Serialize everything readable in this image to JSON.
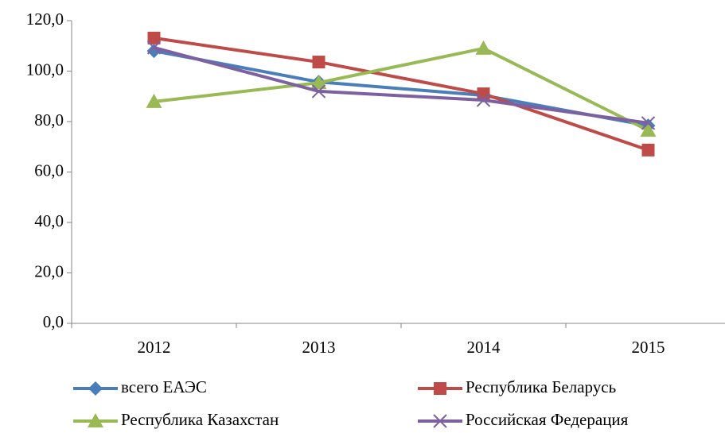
{
  "chart_data": {
    "type": "line",
    "categories": [
      "2012",
      "2013",
      "2014",
      "2015"
    ],
    "series": [
      {
        "name": "всего ЕАЭС",
        "color": "#4a7ebb",
        "marker": "diamond",
        "values": [
          108.0,
          95.7,
          90.4,
          78.4
        ]
      },
      {
        "name": "Республика Беларусь",
        "color": "#be4b48",
        "marker": "square",
        "values": [
          113.1,
          103.6,
          91.0,
          68.7
        ]
      },
      {
        "name": "Республика Казахстан",
        "color": "#98b954",
        "marker": "triangle",
        "values": [
          87.9,
          95.4,
          109.0,
          76.5
        ]
      },
      {
        "name": "Российская Федерация",
        "color": "#7d60a0",
        "marker": "x",
        "values": [
          109.3,
          92.0,
          88.5,
          79.4
        ]
      }
    ],
    "ylim": [
      0,
      120
    ],
    "yticks": [
      {
        "value": 0,
        "label": "0,0"
      },
      {
        "value": 20,
        "label": "20,0"
      },
      {
        "value": 40,
        "label": "40,0"
      },
      {
        "value": 60,
        "label": "60,0"
      },
      {
        "value": 80,
        "label": "80,0"
      },
      {
        "value": 100,
        "label": "100,0"
      },
      {
        "value": 120,
        "label": "120,0"
      }
    ],
    "grid": false,
    "legend": "bottom"
  }
}
